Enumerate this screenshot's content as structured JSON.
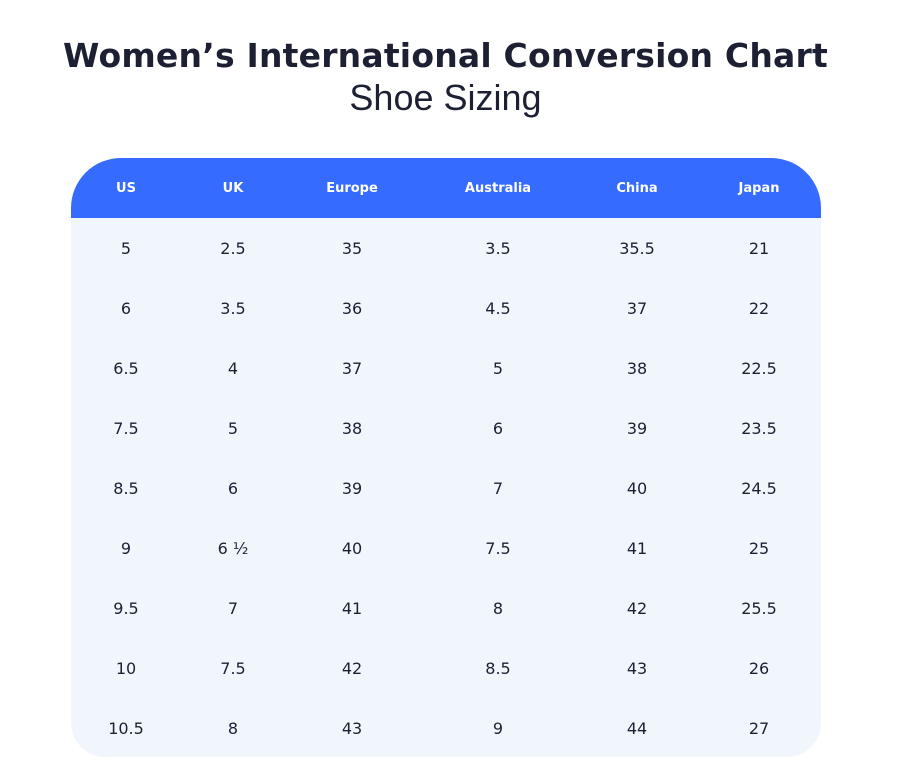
{
  "title": "Women’s International Conversion Chart",
  "subtitle": "Shoe Sizing",
  "colors": {
    "header_bg": "#356bff",
    "body_bg": "#f1f6fd",
    "text": "#1d2033"
  },
  "table": {
    "headers": [
      "US",
      "UK",
      "Europe",
      "Australia",
      "China",
      "Japan"
    ],
    "rows": [
      [
        "5",
        "2.5",
        "35",
        "3.5",
        "35.5",
        "21"
      ],
      [
        "6",
        "3.5",
        "36",
        "4.5",
        "37",
        "22"
      ],
      [
        "6.5",
        "4",
        "37",
        "5",
        "38",
        "22.5"
      ],
      [
        "7.5",
        "5",
        "38",
        "6",
        "39",
        "23.5"
      ],
      [
        "8.5",
        "6",
        "39",
        "7",
        "40",
        "24.5"
      ],
      [
        "9",
        "6 ½",
        "40",
        "7.5",
        "41",
        "25"
      ],
      [
        "9.5",
        "7",
        "41",
        "8",
        "42",
        "25.5"
      ],
      [
        "10",
        "7.5",
        "42",
        "8.5",
        "43",
        "26"
      ],
      [
        "10.5",
        "8",
        "43",
        "9",
        "44",
        "27"
      ]
    ]
  }
}
